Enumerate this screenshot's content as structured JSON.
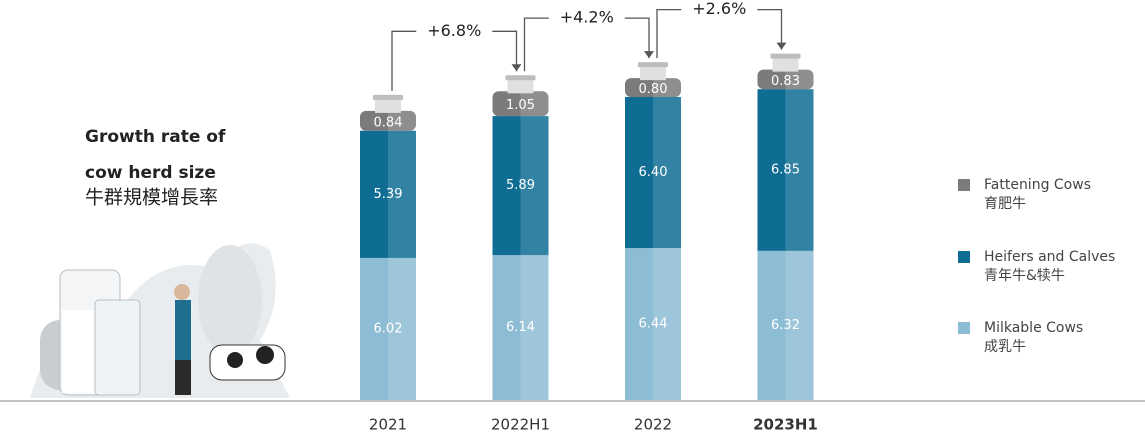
{
  "chart_data": {
    "type": "stacked_bar",
    "title": [
      "Growth rate of",
      "cow herd size",
      "牛群規模增長率"
    ],
    "categories": [
      "2021",
      "2022H1",
      "2022",
      "2023H1"
    ],
    "series": [
      {
        "name": [
          "Milkable Cows",
          "成乳牛"
        ],
        "color": "#8dbdd5",
        "values": [
          6.02,
          6.14,
          6.44,
          6.32
        ],
        "value_labels": [
          "6.02",
          "6.14",
          "6.44",
          "6.32"
        ]
      },
      {
        "name": [
          "Heifers and Calves",
          "青年牛&犊牛"
        ],
        "color": "#0f6d94",
        "values": [
          5.39,
          5.89,
          6.4,
          6.85
        ],
        "value_labels": [
          "5.39",
          "5.89",
          "6.40",
          "6.85"
        ]
      },
      {
        "name": [
          "Fattening Cows",
          "育肥牛"
        ],
        "color": "#7b7b7b",
        "values": [
          0.84,
          1.05,
          0.8,
          0.83
        ],
        "value_labels": [
          "0.84",
          "1.05",
          "0.80",
          "0.83"
        ]
      }
    ],
    "annotations": [
      "+6.8%",
      "+4.2%",
      "+2.6%"
    ]
  }
}
